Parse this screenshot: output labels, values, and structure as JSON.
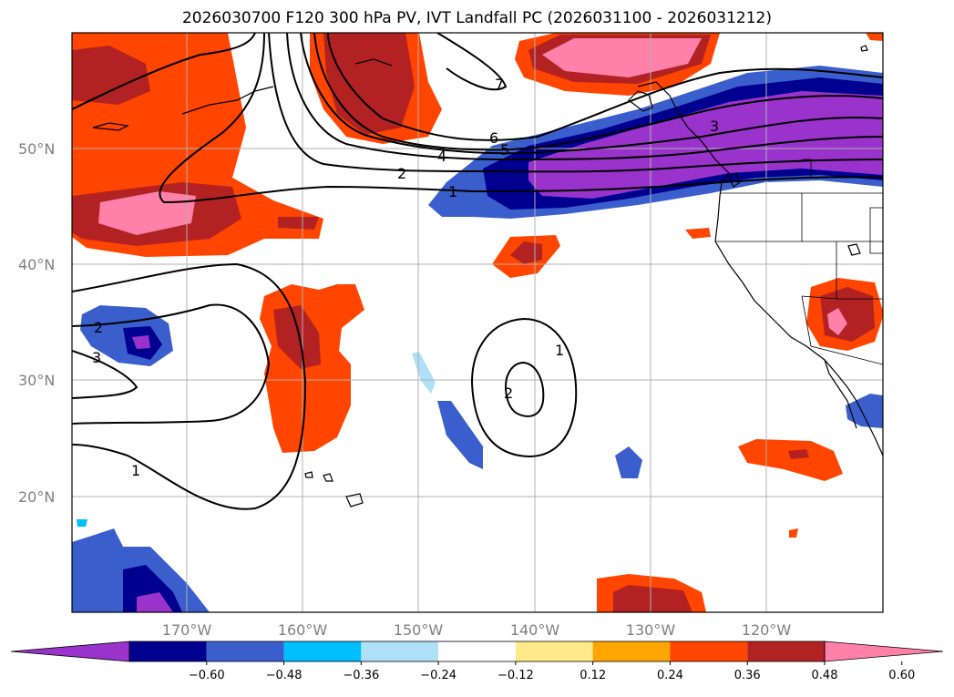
{
  "title": "2026030700 F120 300 hPa PV, IVT Landfall PC (2026031100 - 2026031212)",
  "lat_labels": [
    "50°N",
    "40°N",
    "30°N",
    "20°N"
  ],
  "lon_labels": [
    "170°W",
    "160°W",
    "150°W",
    "140°W",
    "130°W",
    "120°W"
  ],
  "colorbar": {
    "colors": [
      "#9933cc",
      "#000090",
      "#3a5fcd",
      "#00bfff",
      "#aee0f8",
      "#ffffff",
      "#ffe98a",
      "#ffa500",
      "#ff4500",
      "#b22222",
      "#ff80a8"
    ],
    "tick_labels": [
      "−0.60",
      "−0.48",
      "−0.36",
      "−0.24",
      "−0.12",
      "0.12",
      "0.24",
      "0.36",
      "0.48",
      "0.60"
    ]
  },
  "contour_labels": [
    "1",
    "2",
    "4",
    "5",
    "6",
    "7",
    "3",
    "1",
    "2",
    "3",
    "1",
    "2",
    "1"
  ]
}
